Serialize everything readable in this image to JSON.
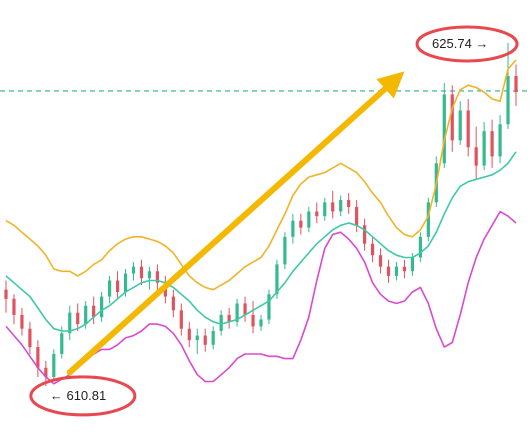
{
  "chart_data": {
    "type": "candlestick",
    "title": "",
    "xlabel": "",
    "ylabel": "",
    "ylim": [
      609.5,
      627.0
    ],
    "high_annotation": {
      "value": 625.74,
      "text": "625.74",
      "arrow": "→"
    },
    "low_annotation": {
      "value": 610.81,
      "text": "610.81",
      "arrow": "←"
    },
    "reference_line": {
      "value": 623.65,
      "style": "dashed",
      "color": "#2bb08a"
    },
    "trend_arrow": {
      "from": [
        8,
        611.4
      ],
      "to": [
        50,
        624.5
      ],
      "color": "#f5b800"
    },
    "candles": [
      {
        "o": 615.0,
        "h": 615.4,
        "l": 614.0,
        "c": 614.6
      },
      {
        "o": 614.6,
        "h": 614.8,
        "l": 613.5,
        "c": 613.9
      },
      {
        "o": 613.9,
        "h": 614.2,
        "l": 613.0,
        "c": 613.3
      },
      {
        "o": 613.3,
        "h": 613.6,
        "l": 612.2,
        "c": 612.5
      },
      {
        "o": 612.5,
        "h": 612.8,
        "l": 611.2,
        "c": 611.6
      },
      {
        "o": 611.6,
        "h": 611.9,
        "l": 610.81,
        "c": 611.2
      },
      {
        "o": 611.2,
        "h": 612.4,
        "l": 611.0,
        "c": 612.2
      },
      {
        "o": 612.2,
        "h": 613.4,
        "l": 612.0,
        "c": 613.1
      },
      {
        "o": 613.1,
        "h": 614.3,
        "l": 612.8,
        "c": 614.0
      },
      {
        "o": 614.0,
        "h": 614.4,
        "l": 613.2,
        "c": 613.5
      },
      {
        "o": 613.5,
        "h": 614.5,
        "l": 613.3,
        "c": 614.3
      },
      {
        "o": 614.3,
        "h": 614.7,
        "l": 613.5,
        "c": 613.8
      },
      {
        "o": 613.8,
        "h": 614.9,
        "l": 613.6,
        "c": 614.7
      },
      {
        "o": 614.7,
        "h": 615.6,
        "l": 614.4,
        "c": 615.4
      },
      {
        "o": 615.4,
        "h": 615.8,
        "l": 614.6,
        "c": 614.9
      },
      {
        "o": 614.9,
        "h": 615.9,
        "l": 614.7,
        "c": 615.7
      },
      {
        "o": 615.7,
        "h": 616.2,
        "l": 615.4,
        "c": 616.0
      },
      {
        "o": 616.0,
        "h": 616.3,
        "l": 615.2,
        "c": 615.5
      },
      {
        "o": 615.5,
        "h": 616.0,
        "l": 615.0,
        "c": 615.8
      },
      {
        "o": 615.8,
        "h": 616.1,
        "l": 615.0,
        "c": 615.3
      },
      {
        "o": 615.3,
        "h": 615.6,
        "l": 614.4,
        "c": 614.7
      },
      {
        "o": 614.7,
        "h": 615.0,
        "l": 613.8,
        "c": 614.1
      },
      {
        "o": 614.1,
        "h": 614.4,
        "l": 613.0,
        "c": 613.3
      },
      {
        "o": 613.3,
        "h": 613.6,
        "l": 612.5,
        "c": 612.8
      },
      {
        "o": 612.8,
        "h": 613.3,
        "l": 612.2,
        "c": 613.0
      },
      {
        "o": 613.0,
        "h": 613.3,
        "l": 612.3,
        "c": 612.6
      },
      {
        "o": 612.6,
        "h": 613.4,
        "l": 612.4,
        "c": 613.2
      },
      {
        "o": 613.2,
        "h": 614.1,
        "l": 613.0,
        "c": 613.9
      },
      {
        "o": 613.9,
        "h": 614.2,
        "l": 613.3,
        "c": 613.6
      },
      {
        "o": 613.6,
        "h": 614.6,
        "l": 613.4,
        "c": 614.4
      },
      {
        "o": 614.4,
        "h": 614.7,
        "l": 613.6,
        "c": 613.9
      },
      {
        "o": 613.9,
        "h": 614.5,
        "l": 613.1,
        "c": 613.4
      },
      {
        "o": 613.4,
        "h": 613.9,
        "l": 613.2,
        "c": 613.7
      },
      {
        "o": 613.7,
        "h": 615.0,
        "l": 613.5,
        "c": 614.8
      },
      {
        "o": 614.8,
        "h": 616.3,
        "l": 614.6,
        "c": 616.1
      },
      {
        "o": 616.1,
        "h": 617.5,
        "l": 615.9,
        "c": 617.3
      },
      {
        "o": 617.3,
        "h": 618.3,
        "l": 617.0,
        "c": 618.0
      },
      {
        "o": 618.0,
        "h": 618.3,
        "l": 617.4,
        "c": 617.7
      },
      {
        "o": 617.7,
        "h": 618.6,
        "l": 617.5,
        "c": 618.4
      },
      {
        "o": 618.4,
        "h": 618.8,
        "l": 617.9,
        "c": 618.2
      },
      {
        "o": 618.2,
        "h": 619.0,
        "l": 618.0,
        "c": 618.8
      },
      {
        "o": 618.8,
        "h": 619.3,
        "l": 618.1,
        "c": 618.4
      },
      {
        "o": 618.4,
        "h": 619.1,
        "l": 618.2,
        "c": 618.9
      },
      {
        "o": 618.9,
        "h": 619.2,
        "l": 618.3,
        "c": 618.6
      },
      {
        "o": 618.6,
        "h": 618.9,
        "l": 617.5,
        "c": 617.8
      },
      {
        "o": 617.8,
        "h": 618.1,
        "l": 616.7,
        "c": 617.0
      },
      {
        "o": 617.0,
        "h": 617.3,
        "l": 616.2,
        "c": 616.5
      },
      {
        "o": 616.5,
        "h": 616.8,
        "l": 615.7,
        "c": 616.0
      },
      {
        "o": 616.0,
        "h": 616.3,
        "l": 615.3,
        "c": 615.6
      },
      {
        "o": 615.6,
        "h": 616.2,
        "l": 615.4,
        "c": 616.0
      },
      {
        "o": 616.0,
        "h": 616.3,
        "l": 615.5,
        "c": 615.8
      },
      {
        "o": 615.8,
        "h": 616.6,
        "l": 615.6,
        "c": 616.4
      },
      {
        "o": 616.4,
        "h": 617.5,
        "l": 616.2,
        "c": 617.3
      },
      {
        "o": 617.3,
        "h": 619.0,
        "l": 617.1,
        "c": 618.8
      },
      {
        "o": 618.8,
        "h": 620.8,
        "l": 618.6,
        "c": 620.5
      },
      {
        "o": 620.5,
        "h": 624.0,
        "l": 620.3,
        "c": 623.5
      },
      {
        "o": 623.5,
        "h": 623.9,
        "l": 621.0,
        "c": 621.5
      },
      {
        "o": 621.5,
        "h": 623.2,
        "l": 621.3,
        "c": 622.8
      },
      {
        "o": 622.8,
        "h": 623.3,
        "l": 620.8,
        "c": 621.2
      },
      {
        "o": 621.2,
        "h": 622.1,
        "l": 619.8,
        "c": 620.4
      },
      {
        "o": 620.4,
        "h": 622.3,
        "l": 620.2,
        "c": 621.9
      },
      {
        "o": 621.9,
        "h": 622.4,
        "l": 620.3,
        "c": 620.8
      },
      {
        "o": 620.8,
        "h": 622.6,
        "l": 620.5,
        "c": 622.2
      },
      {
        "o": 622.2,
        "h": 625.74,
        "l": 622.0,
        "c": 624.3
      },
      {
        "o": 624.3,
        "h": 624.8,
        "l": 623.0,
        "c": 623.6
      }
    ],
    "bands": {
      "upper": {
        "color": "#f0b429",
        "values": [
          618.0,
          617.8,
          617.5,
          617.2,
          616.9,
          616.5,
          615.9,
          615.8,
          615.8,
          615.6,
          615.8,
          616.1,
          616.3,
          616.7,
          617.0,
          617.2,
          617.3,
          617.3,
          617.2,
          617.1,
          616.9,
          616.6,
          616.1,
          615.6,
          615.3,
          615.1,
          615.0,
          615.2,
          615.4,
          615.7,
          616.0,
          616.2,
          616.4,
          616.9,
          617.6,
          618.3,
          619.1,
          619.6,
          619.9,
          620.0,
          620.1,
          620.3,
          620.5,
          620.3,
          620.1,
          619.7,
          619.2,
          618.8,
          618.2,
          617.7,
          617.4,
          617.3,
          617.6,
          618.2,
          619.6,
          621.5,
          622.9,
          623.7,
          623.9,
          623.8,
          623.6,
          623.3,
          623.2,
          624.6,
          625.0
        ]
      },
      "middle": {
        "color": "#3ec9a7",
        "values": [
          615.6,
          615.3,
          615.0,
          614.7,
          614.2,
          613.7,
          613.3,
          613.2,
          613.2,
          613.3,
          613.5,
          613.8,
          614.1,
          614.3,
          614.6,
          614.9,
          615.1,
          615.3,
          615.4,
          615.4,
          615.3,
          615.1,
          614.8,
          614.5,
          614.1,
          613.8,
          613.6,
          613.5,
          613.6,
          613.7,
          613.9,
          614.1,
          614.3,
          614.5,
          614.9,
          615.3,
          615.8,
          616.2,
          616.6,
          617.0,
          617.3,
          617.6,
          617.8,
          617.9,
          617.8,
          617.6,
          617.3,
          617.0,
          616.7,
          616.5,
          616.4,
          616.4,
          616.6,
          616.9,
          617.5,
          618.3,
          619.0,
          619.5,
          619.7,
          619.8,
          619.9,
          620.0,
          620.2,
          620.5,
          621.0
        ]
      },
      "lower": {
        "color": "#d84bd0",
        "values": [
          613.4,
          613.0,
          612.6,
          612.1,
          611.6,
          611.2,
          610.9,
          611.1,
          611.3,
          611.6,
          611.9,
          612.2,
          612.4,
          612.4,
          612.6,
          612.9,
          613.0,
          613.2,
          613.5,
          613.5,
          613.4,
          613.1,
          612.6,
          611.9,
          611.3,
          611.0,
          611.0,
          611.3,
          611.6,
          612.0,
          612.2,
          612.2,
          612.2,
          612.1,
          612.1,
          612.0,
          612.0,
          612.8,
          613.8,
          615.4,
          616.8,
          617.4,
          617.5,
          617.2,
          616.8,
          616.2,
          615.3,
          614.8,
          614.5,
          614.4,
          614.5,
          614.9,
          615.1,
          614.4,
          613.3,
          612.5,
          612.7,
          613.9,
          615.3,
          616.4,
          617.2,
          617.8,
          618.4,
          618.2,
          617.9
        ]
      }
    }
  }
}
